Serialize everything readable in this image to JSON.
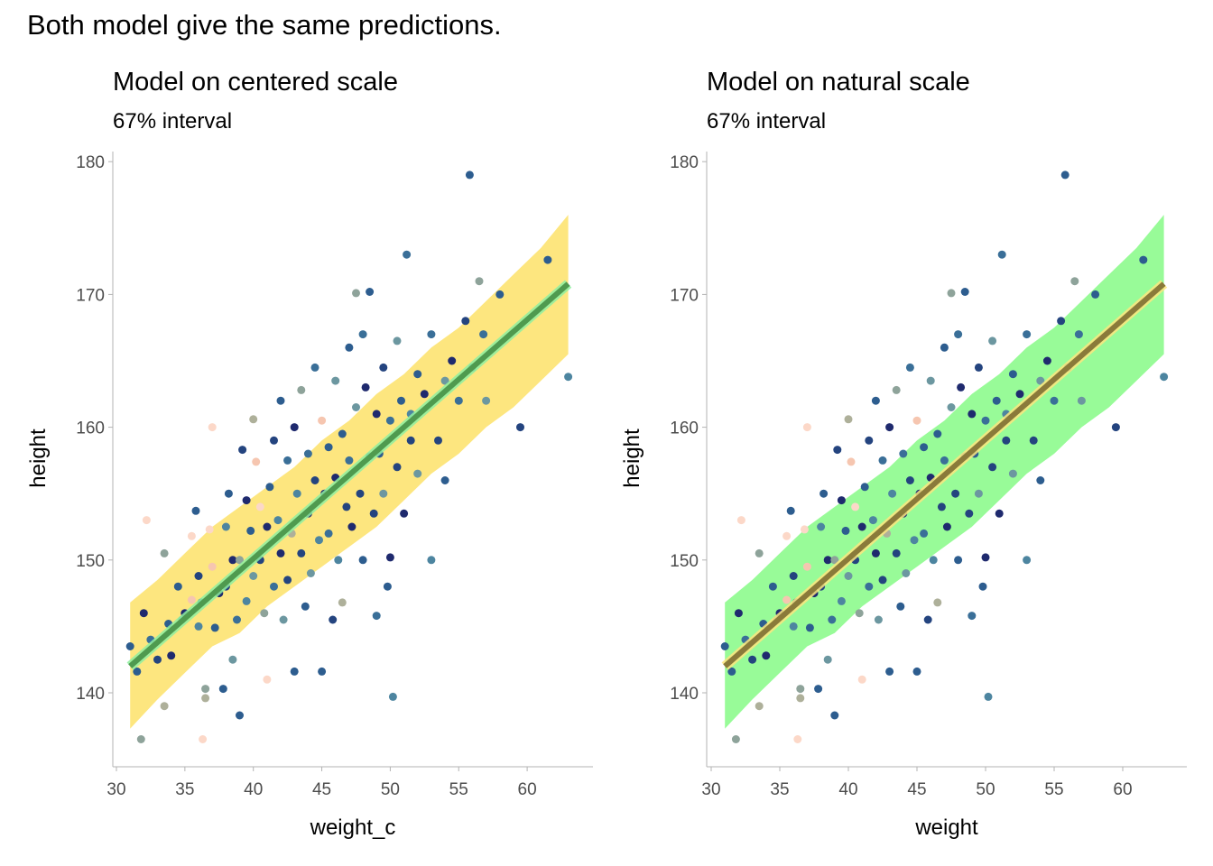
{
  "title": "Both model give the same predictions.",
  "chart_data": [
    {
      "type": "scatter",
      "title": "Model on centered scale",
      "subtitle": "67% interval",
      "xlabel": "weight_c",
      "ylabel": "height",
      "xlim": [
        30,
        64
      ],
      "ylim": [
        135,
        180
      ],
      "xticks": [
        "30",
        "35",
        "40",
        "45",
        "50",
        "55",
        "60"
      ],
      "yticks": [
        "140",
        "150",
        "160",
        "170",
        "180"
      ],
      "interval_color": "#fde67f",
      "line_color": "#4f9a4f",
      "line_glow_color": "#8ff0a0"
    },
    {
      "type": "scatter",
      "title": "Model on natural scale",
      "subtitle": "67% interval",
      "xlabel": "weight",
      "ylabel": "height",
      "xlim": [
        30,
        64
      ],
      "ylim": [
        135,
        180
      ],
      "xticks": [
        "30",
        "35",
        "40",
        "45",
        "50",
        "55",
        "60"
      ],
      "yticks": [
        "140",
        "150",
        "160",
        "170",
        "180"
      ],
      "interval_color": "#98fb98",
      "line_color": "#8a7a3a",
      "line_glow_color": "#fde67f"
    }
  ],
  "shared": {
    "interval": {
      "x": [
        31,
        33,
        35,
        37,
        39,
        41,
        43,
        45,
        47,
        49,
        51,
        53,
        55,
        57,
        59,
        61,
        63
      ],
      "lower": [
        137.3,
        139.5,
        141.5,
        143.5,
        144.5,
        146.5,
        148.0,
        149.5,
        151.0,
        152.5,
        154.5,
        156.5,
        158.0,
        160.0,
        161.5,
        163.5,
        165.5
      ],
      "upper": [
        146.8,
        148.5,
        150.5,
        152.5,
        154.0,
        155.5,
        157.0,
        159.0,
        160.5,
        162.5,
        164.0,
        166.0,
        167.5,
        169.5,
        171.5,
        173.5,
        176.0
      ]
    },
    "fit_line": {
      "x": [
        31,
        63
      ],
      "y": [
        142.0,
        170.8
      ]
    },
    "points": [
      [
        31.0,
        143.5,
        3
      ],
      [
        31.5,
        141.6,
        3
      ],
      [
        31.8,
        136.5,
        7
      ],
      [
        32.0,
        146.0,
        1
      ],
      [
        32.2,
        153.0,
        10
      ],
      [
        32.5,
        144.0,
        4
      ],
      [
        33.0,
        142.5,
        2
      ],
      [
        33.5,
        139.0,
        8
      ],
      [
        33.5,
        150.5,
        7
      ],
      [
        33.8,
        145.2,
        3
      ],
      [
        34.0,
        142.8,
        1
      ],
      [
        34.5,
        148.0,
        3
      ],
      [
        34.8,
        145.5,
        6
      ],
      [
        35.0,
        146.0,
        1
      ],
      [
        35.5,
        147.0,
        9
      ],
      [
        35.5,
        151.8,
        10
      ],
      [
        35.8,
        153.7,
        3
      ],
      [
        36.0,
        145.0,
        5
      ],
      [
        36.0,
        148.8,
        2
      ],
      [
        36.2,
        146.8,
        4
      ],
      [
        36.3,
        136.5,
        10
      ],
      [
        36.5,
        140.3,
        7
      ],
      [
        36.5,
        139.6,
        8
      ],
      [
        36.8,
        152.3,
        10
      ],
      [
        37.0,
        149.5,
        9
      ],
      [
        37.0,
        160.0,
        10
      ],
      [
        37.2,
        144.9,
        3
      ],
      [
        37.5,
        147.5,
        1
      ],
      [
        37.8,
        140.3,
        3
      ],
      [
        38.0,
        152.5,
        5
      ],
      [
        38.0,
        148.0,
        2
      ],
      [
        38.2,
        155.0,
        3
      ],
      [
        38.5,
        142.5,
        6
      ],
      [
        38.5,
        150.0,
        1
      ],
      [
        38.8,
        145.5,
        4
      ],
      [
        39.0,
        138.3,
        3
      ],
      [
        39.0,
        150.0,
        7
      ],
      [
        39.2,
        158.3,
        2
      ],
      [
        39.5,
        154.5,
        1
      ],
      [
        39.5,
        146.9,
        5
      ],
      [
        39.8,
        152.2,
        3
      ],
      [
        40.0,
        160.6,
        8
      ],
      [
        40.0,
        148.8,
        6
      ],
      [
        40.2,
        157.4,
        9
      ],
      [
        40.5,
        154.0,
        10
      ],
      [
        40.5,
        150.0,
        2
      ],
      [
        40.8,
        146.0,
        7
      ],
      [
        41.0,
        141.0,
        10
      ],
      [
        41.0,
        152.5,
        1
      ],
      [
        41.2,
        155.5,
        3
      ],
      [
        41.5,
        148.0,
        4
      ],
      [
        41.5,
        159.0,
        2
      ],
      [
        41.8,
        153.0,
        5
      ],
      [
        42.0,
        162.0,
        3
      ],
      [
        42.0,
        150.5,
        1
      ],
      [
        42.2,
        145.5,
        6
      ],
      [
        42.5,
        157.5,
        4
      ],
      [
        42.5,
        148.5,
        2
      ],
      [
        42.8,
        152.0,
        8
      ],
      [
        43.0,
        141.6,
        3
      ],
      [
        43.0,
        160.0,
        1
      ],
      [
        43.2,
        155.0,
        5
      ],
      [
        43.5,
        162.8,
        7
      ],
      [
        43.5,
        150.5,
        2
      ],
      [
        43.8,
        146.5,
        3
      ],
      [
        44.0,
        158.0,
        4
      ],
      [
        44.0,
        153.5,
        1
      ],
      [
        44.2,
        149.0,
        6
      ],
      [
        44.5,
        164.5,
        4
      ],
      [
        44.5,
        156.0,
        2
      ],
      [
        44.8,
        151.5,
        5
      ],
      [
        45.0,
        141.6,
        3
      ],
      [
        45.0,
        160.5,
        9
      ],
      [
        45.2,
        155.0,
        1
      ],
      [
        45.5,
        158.5,
        3
      ],
      [
        45.5,
        152.0,
        4
      ],
      [
        45.8,
        145.5,
        2
      ],
      [
        46.0,
        163.5,
        6
      ],
      [
        46.0,
        156.2,
        1
      ],
      [
        46.2,
        150.0,
        5
      ],
      [
        46.5,
        159.5,
        3
      ],
      [
        46.5,
        146.8,
        8
      ],
      [
        46.8,
        154.0,
        2
      ],
      [
        47.0,
        166.0,
        3
      ],
      [
        47.0,
        157.5,
        4
      ],
      [
        47.2,
        152.5,
        1
      ],
      [
        47.5,
        170.1,
        7
      ],
      [
        47.5,
        161.5,
        6
      ],
      [
        47.8,
        155.0,
        2
      ],
      [
        48.0,
        167.0,
        4
      ],
      [
        48.0,
        150.0,
        3
      ],
      [
        48.2,
        163.0,
        1
      ],
      [
        48.5,
        157.8,
        5
      ],
      [
        48.5,
        170.2,
        3
      ],
      [
        48.8,
        153.5,
        2
      ],
      [
        49.0,
        161.0,
        1
      ],
      [
        49.0,
        145.8,
        4
      ],
      [
        49.2,
        158.0,
        3
      ],
      [
        49.5,
        155.0,
        6
      ],
      [
        49.5,
        164.5,
        2
      ],
      [
        49.8,
        148.0,
        3
      ],
      [
        50.0,
        160.5,
        4
      ],
      [
        50.0,
        150.2,
        1
      ],
      [
        50.2,
        139.7,
        5
      ],
      [
        50.5,
        157.0,
        2
      ],
      [
        50.5,
        166.5,
        6
      ],
      [
        50.8,
        162.0,
        3
      ],
      [
        51.0,
        153.5,
        1
      ],
      [
        51.2,
        173.0,
        4
      ],
      [
        51.5,
        159.0,
        2
      ],
      [
        51.5,
        161.0,
        5
      ],
      [
        52.0,
        164.0,
        3
      ],
      [
        52.0,
        156.5,
        6
      ],
      [
        52.5,
        162.5,
        1
      ],
      [
        53.0,
        167.0,
        4
      ],
      [
        53.0,
        150.0,
        5
      ],
      [
        53.5,
        159.0,
        2
      ],
      [
        54.0,
        163.5,
        6
      ],
      [
        54.0,
        156.0,
        3
      ],
      [
        54.5,
        165.0,
        1
      ],
      [
        55.0,
        162.0,
        4
      ],
      [
        55.5,
        168.0,
        2
      ],
      [
        55.8,
        179.0,
        3
      ],
      [
        56.0,
        164.5,
        5
      ],
      [
        56.5,
        171.0,
        7
      ],
      [
        56.8,
        167.0,
        4
      ],
      [
        57.0,
        162.0,
        6
      ],
      [
        58.0,
        170.0,
        3
      ],
      [
        59.5,
        160.0,
        2
      ],
      [
        61.5,
        172.6,
        3
      ],
      [
        63.0,
        163.8,
        5
      ]
    ]
  }
}
